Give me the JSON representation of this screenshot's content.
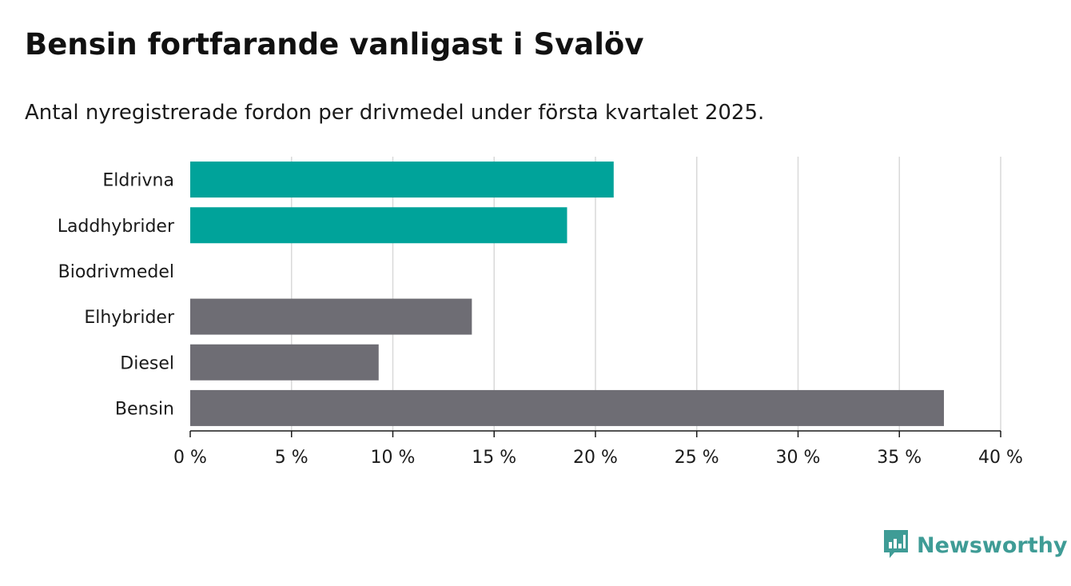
{
  "title": "Bensin fortfarande vanligast i Svalöv",
  "subtitle": "Antal nyregistrerade fordon per drivmedel under första kvartalet 2025.",
  "chart_data": {
    "type": "bar",
    "orientation": "horizontal",
    "categories": [
      "Eldrivna",
      "Laddhybrider",
      "Biodrivmedel",
      "Elhybrider",
      "Diesel",
      "Bensin"
    ],
    "values": [
      20.9,
      18.6,
      0,
      13.9,
      9.3,
      37.2
    ],
    "bar_colors": [
      "#00a39a",
      "#00a39a",
      "#00a39a",
      "#6e6d74",
      "#6e6d74",
      "#6e6d74"
    ],
    "xlim": [
      0,
      40
    ],
    "xticks": [
      0,
      5,
      10,
      15,
      20,
      25,
      30,
      35,
      40
    ],
    "xtick_labels": [
      "0 %",
      "5 %",
      "10 %",
      "15 %",
      "20 %",
      "25 %",
      "30 %",
      "35 %",
      "40 %"
    ],
    "grid": true
  },
  "brand": {
    "name": "Newsworthy",
    "icon": "newsworthy-logo-icon",
    "color": "#3f9c96"
  }
}
